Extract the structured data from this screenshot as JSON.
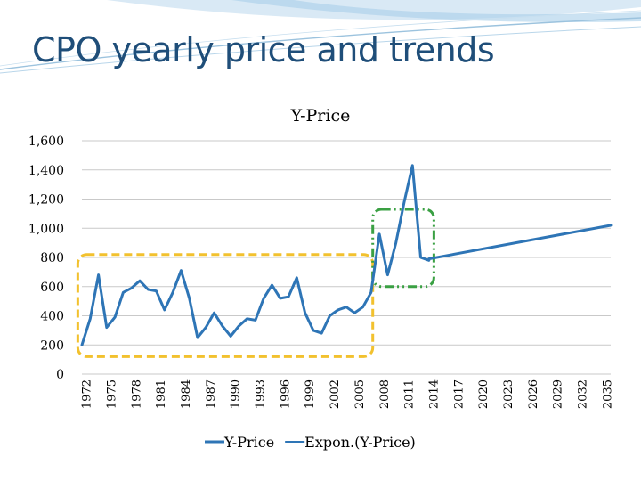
{
  "slide": {
    "title": "CPO yearly price and trends",
    "accent_color": "#1f4e79"
  },
  "chart_data": {
    "type": "line",
    "title": "Y-Price",
    "xlabel": "",
    "ylabel": "",
    "ylim": [
      0,
      1600
    ],
    "yticks": [
      0,
      200,
      400,
      600,
      800,
      1000,
      1200,
      1400,
      1600
    ],
    "ytick_labels": [
      "0",
      "200",
      "400",
      "600",
      "800",
      "1,000",
      "1,200",
      "1,400",
      "1,600"
    ],
    "x_labels": [
      "1972",
      "1975",
      "1978",
      "1981",
      "1984",
      "1987",
      "1990",
      "1993",
      "1996",
      "1999",
      "2002",
      "2005",
      "2008",
      "2011",
      "2014",
      "2017",
      "2020",
      "2023",
      "2026",
      "2029",
      "2032",
      "2035"
    ],
    "x_start": 1972,
    "x_end": 2036,
    "grid": true,
    "legend": "bottom",
    "series": [
      {
        "name": "Y-Price",
        "color": "#2e75b6",
        "x": [
          1972,
          1973,
          1974,
          1975,
          1976,
          1977,
          1978,
          1979,
          1980,
          1981,
          1982,
          1983,
          1984,
          1985,
          1986,
          1987,
          1988,
          1989,
          1990,
          1991,
          1992,
          1993,
          1994,
          1995,
          1996,
          1997,
          1998,
          1999,
          2000,
          2001,
          2002,
          2003,
          2004,
          2005,
          2006,
          2007,
          2008,
          2009,
          2010,
          2011,
          2012,
          2013,
          2014
        ],
        "values": [
          200,
          380,
          680,
          320,
          390,
          560,
          590,
          640,
          580,
          570,
          440,
          560,
          710,
          520,
          250,
          320,
          420,
          330,
          260,
          330,
          380,
          370,
          520,
          610,
          520,
          530,
          660,
          420,
          300,
          280,
          400,
          440,
          460,
          420,
          460,
          560,
          960,
          680,
          900,
          1180,
          1430,
          800,
          780
        ]
      },
      {
        "name": "Expon.(Y-Price)",
        "color": "#2e75b6",
        "x": [
          2014,
          2036
        ],
        "values": [
          790,
          1020
        ]
      }
    ],
    "annotations": [
      {
        "kind": "rounded-dashed-box",
        "color": "#f2c12e",
        "x_from": 1971.5,
        "x_to": 2007.2,
        "y_from": 120,
        "y_to": 820
      },
      {
        "kind": "rounded-dash-dot-box",
        "color": "#3aa043",
        "x_from": 2007.2,
        "x_to": 2014.6,
        "y_from": 600,
        "y_to": 1130
      }
    ]
  }
}
